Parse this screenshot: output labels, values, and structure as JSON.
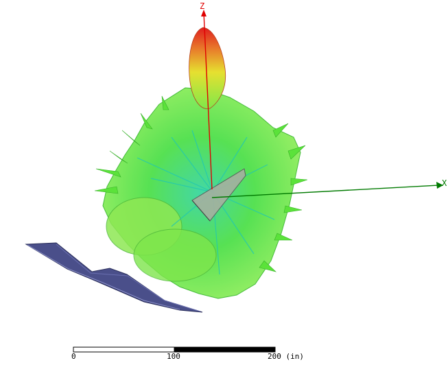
{
  "axes": {
    "z": {
      "label": "Z",
      "color": "#e00000"
    },
    "x": {
      "label": "X",
      "color": "#007a00"
    }
  },
  "scale_bar": {
    "ticks": [
      "0",
      "100",
      "200"
    ],
    "unit": "(in)"
  },
  "colors": {
    "pattern_green": "#55e03c",
    "pattern_cyan": "#22c8b0",
    "pattern_yellow": "#d8e020",
    "pattern_red": "#e02020",
    "reflector_surface": "#4a4f8a"
  }
}
